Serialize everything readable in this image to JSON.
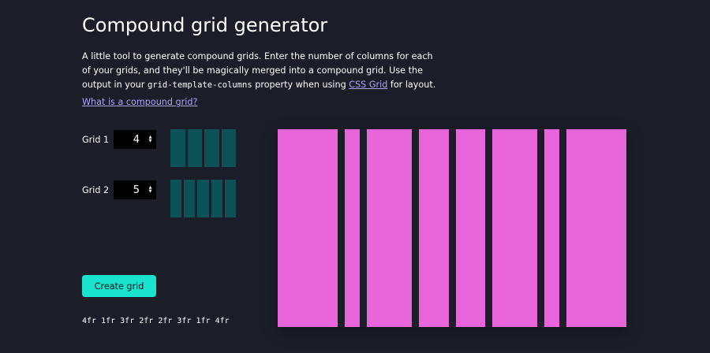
{
  "title": "Compound grid generator",
  "intro": {
    "text1": "A little tool to generate compound grids. Enter the number of columns for each of your grids, and they'll be magically merged into a compound grid. Use the output in your ",
    "code": "grid-template-columns",
    "text2": " property when using ",
    "link": "CSS Grid",
    "text3": " for layout."
  },
  "what_link": "What is a compound grid?",
  "grids": [
    {
      "label": "Grid 1",
      "value": "4",
      "columns": 4
    },
    {
      "label": "Grid 2",
      "value": "5",
      "columns": 5
    }
  ],
  "spinner": {
    "up": "▲",
    "down": "▼"
  },
  "create_button": "Create grid",
  "output": "4fr 1fr 3fr 2fr 2fr 3fr 1fr 4fr",
  "result_columns_fr": [
    4,
    1,
    3,
    2,
    2,
    3,
    1,
    4
  ],
  "colors": {
    "background": "#1b1d29",
    "preview_column": "#0b5257",
    "result_column": "#e866d9",
    "button": "#19e3cd",
    "link": "#a9a6f7"
  }
}
